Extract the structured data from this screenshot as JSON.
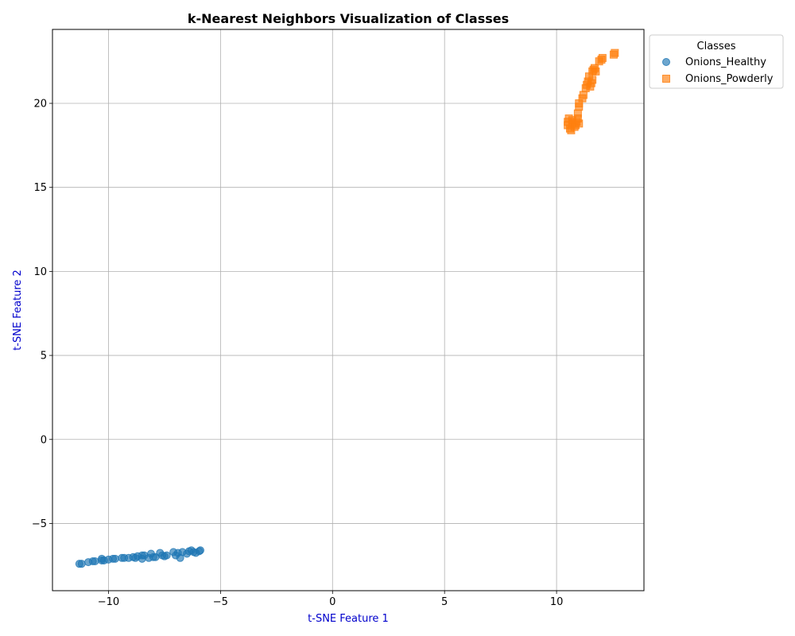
{
  "chart_data": {
    "type": "scatter",
    "title": "k-Nearest Neighbors Visualization of Classes",
    "xlabel": "t-SNE Feature 1",
    "ylabel": "t-SNE Feature 2",
    "xlim": [
      -12.5,
      13.9
    ],
    "ylim": [
      -9.0,
      24.4
    ],
    "xticks": [
      -10,
      -5,
      0,
      5,
      10
    ],
    "xtick_labels": [
      "−10",
      "−5",
      "0",
      "5",
      "10"
    ],
    "yticks": [
      -5,
      0,
      5,
      10,
      15,
      20
    ],
    "ytick_labels": [
      "−5",
      "0",
      "5",
      "10",
      "15",
      "20"
    ],
    "grid": true,
    "legend": {
      "title": "Classes",
      "placement": "outside-top-right"
    },
    "axis_label_color": "#0000cc",
    "series": [
      {
        "name": "Onions_Healthy",
        "marker": "circle",
        "color": "#1f77b4",
        "points": [
          [
            -11.3,
            -7.4
          ],
          [
            -11.2,
            -7.4
          ],
          [
            -10.9,
            -7.3
          ],
          [
            -10.7,
            -7.25
          ],
          [
            -10.6,
            -7.25
          ],
          [
            -10.3,
            -7.2
          ],
          [
            -10.3,
            -7.1
          ],
          [
            -10.2,
            -7.2
          ],
          [
            -10.0,
            -7.15
          ],
          [
            -9.8,
            -7.1
          ],
          [
            -9.7,
            -7.1
          ],
          [
            -9.4,
            -7.05
          ],
          [
            -9.3,
            -7.05
          ],
          [
            -9.1,
            -7.05
          ],
          [
            -8.9,
            -7.0
          ],
          [
            -8.8,
            -7.05
          ],
          [
            -8.7,
            -6.95
          ],
          [
            -8.5,
            -6.9
          ],
          [
            -8.5,
            -7.1
          ],
          [
            -8.4,
            -6.9
          ],
          [
            -8.2,
            -7.05
          ],
          [
            -8.1,
            -6.8
          ],
          [
            -8.0,
            -7.0
          ],
          [
            -7.9,
            -7.0
          ],
          [
            -7.7,
            -6.75
          ],
          [
            -7.6,
            -6.9
          ],
          [
            -7.5,
            -6.95
          ],
          [
            -7.4,
            -6.9
          ],
          [
            -7.1,
            -6.7
          ],
          [
            -7.0,
            -6.9
          ],
          [
            -6.9,
            -6.75
          ],
          [
            -6.8,
            -7.05
          ],
          [
            -6.7,
            -6.7
          ],
          [
            -6.5,
            -6.8
          ],
          [
            -6.4,
            -6.65
          ],
          [
            -6.3,
            -6.6
          ],
          [
            -6.2,
            -6.7
          ],
          [
            -6.1,
            -6.75
          ],
          [
            -5.95,
            -6.65
          ],
          [
            -5.9,
            -6.6
          ]
        ]
      },
      {
        "name": "Onions_Powderly",
        "marker": "square",
        "color": "#ff7f0e",
        "points": [
          [
            10.5,
            18.7
          ],
          [
            10.5,
            18.9
          ],
          [
            10.55,
            19.1
          ],
          [
            10.6,
            18.5
          ],
          [
            10.65,
            18.4
          ],
          [
            10.7,
            18.8
          ],
          [
            10.7,
            19.0
          ],
          [
            10.8,
            18.6
          ],
          [
            10.85,
            18.7
          ],
          [
            10.9,
            18.9
          ],
          [
            10.95,
            19.1
          ],
          [
            11.0,
            18.8
          ],
          [
            10.95,
            19.4
          ],
          [
            11.0,
            19.8
          ],
          [
            11.0,
            20.0
          ],
          [
            11.15,
            20.3
          ],
          [
            11.2,
            20.5
          ],
          [
            11.3,
            20.9
          ],
          [
            11.35,
            21.1
          ],
          [
            11.4,
            21.3
          ],
          [
            11.45,
            21.6
          ],
          [
            11.5,
            21.0
          ],
          [
            11.55,
            21.2
          ],
          [
            11.6,
            21.4
          ],
          [
            11.6,
            21.9
          ],
          [
            11.65,
            22.0
          ],
          [
            11.7,
            22.1
          ],
          [
            11.75,
            21.9
          ],
          [
            11.9,
            22.5
          ],
          [
            12.0,
            22.6
          ],
          [
            12.05,
            22.7
          ],
          [
            12.55,
            22.9
          ],
          [
            12.6,
            23.0
          ]
        ]
      }
    ]
  }
}
